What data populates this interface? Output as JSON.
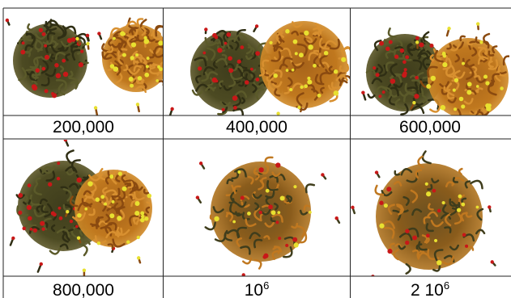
{
  "cells": [
    {
      "label": "200,000"
    },
    {
      "label": "400,000"
    },
    {
      "label": "600,000"
    },
    {
      "label": "800,000"
    },
    {
      "label": "10",
      "sup": "6"
    },
    {
      "label": "2 10",
      "sup": "6"
    }
  ]
}
